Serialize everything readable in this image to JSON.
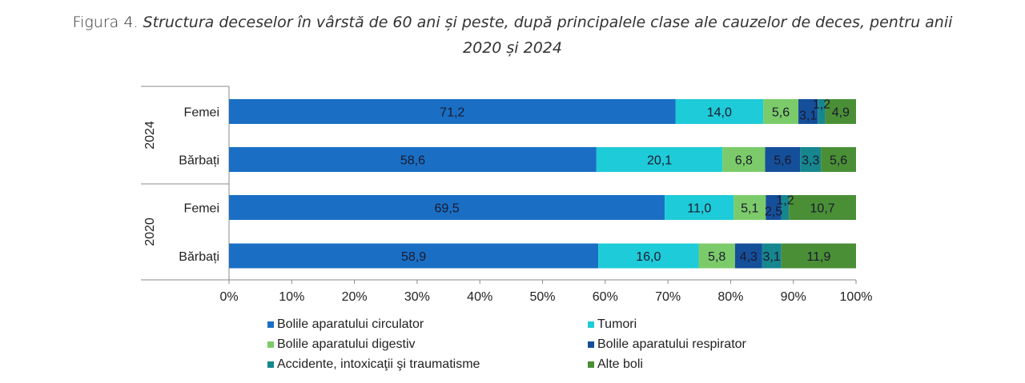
{
  "figure": {
    "lead": "Figura 4.",
    "title_line1": "Structura deceselor în vârstă de 60 ani și peste, după principalele clase ale cauzelor de deces, pentru anii",
    "title_line2": "2020 și 2024"
  },
  "chart_data": {
    "type": "bar",
    "orientation": "horizontal",
    "stacked": "percent",
    "title": "Structura deceselor în vârstă de 60 ani și peste, după principalele clase ale cauzelor de deces, pentru anii 2020 și 2024",
    "groups": [
      {
        "label": "2024",
        "categories": [
          "Femei",
          "Bărbați"
        ]
      },
      {
        "label": "2020",
        "categories": [
          "Femei",
          "Bărbați"
        ]
      }
    ],
    "rows": [
      {
        "group": "2024",
        "category": "Femei"
      },
      {
        "group": "2024",
        "category": "Bărbați"
      },
      {
        "group": "2020",
        "category": "Femei"
      },
      {
        "group": "2020",
        "category": "Bărbați"
      }
    ],
    "series": [
      {
        "name": "Bolile aparatului circulator",
        "color": "#1a6fc4",
        "values": [
          71.2,
          58.6,
          69.5,
          58.9
        ],
        "labels": [
          "71,2",
          "58,6",
          "69,5",
          "58,9"
        ]
      },
      {
        "name": "Tumori",
        "color": "#1ecbd8",
        "values": [
          14.0,
          20.1,
          11.0,
          16.0
        ],
        "labels": [
          "14,0",
          "20,1",
          "11,0",
          "16,0"
        ]
      },
      {
        "name": "Bolile aparatului digestiv",
        "color": "#7ccb6a",
        "values": [
          5.6,
          6.8,
          5.1,
          5.8
        ],
        "labels": [
          "5,6",
          "6,8",
          "5,1",
          "5,8"
        ]
      },
      {
        "name": "Bolile aparatului respirator",
        "color": "#154f9a",
        "values": [
          3.1,
          5.6,
          2.5,
          4.3
        ],
        "labels": [
          "3,1",
          "5,6",
          "2,5",
          "4,3"
        ]
      },
      {
        "name": "Accidente, intoxicaţii şi traumatisme",
        "color": "#16868f",
        "values": [
          1.2,
          3.3,
          1.2,
          3.1
        ],
        "labels": [
          "1,2",
          "3,3",
          "1,2",
          "3,1"
        ]
      },
      {
        "name": "Alte boli",
        "color": "#4a8f36",
        "values": [
          4.9,
          5.6,
          10.7,
          11.9
        ],
        "labels": [
          "4,9",
          "5,6",
          "10,7",
          "11,9"
        ]
      }
    ],
    "xlim": [
      0,
      100
    ],
    "xticks": [
      "0%",
      "10%",
      "20%",
      "30%",
      "40%",
      "50%",
      "60%",
      "70%",
      "80%",
      "90%",
      "100%"
    ],
    "xlabel": "",
    "ylabel": "",
    "grid": false,
    "legend_position": "bottom"
  }
}
